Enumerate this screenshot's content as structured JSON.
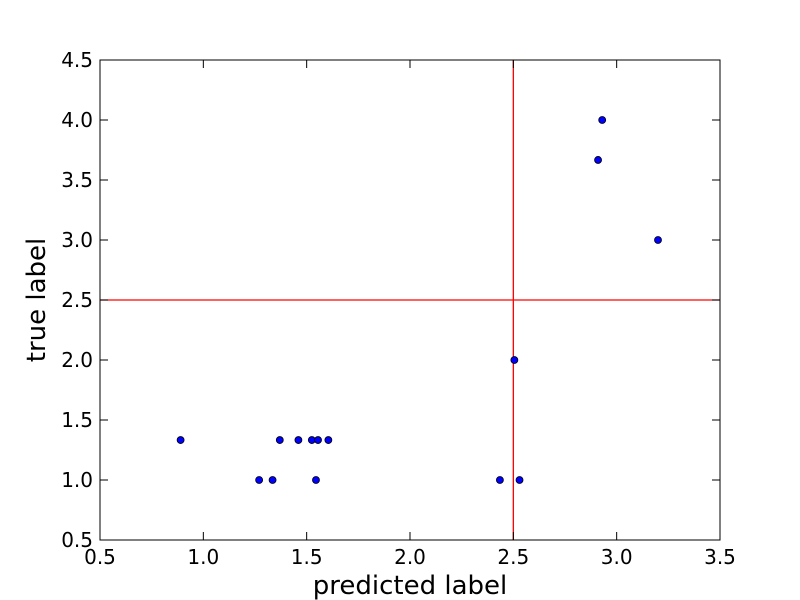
{
  "chart_data": {
    "type": "scatter",
    "title": "",
    "xlabel": "predicted label",
    "ylabel": "true label",
    "xlim": [
      0.5,
      3.5
    ],
    "ylim": [
      0.5,
      4.5
    ],
    "xticks": [
      "0.5",
      "1.0",
      "1.5",
      "2.0",
      "2.5",
      "3.0",
      "3.5"
    ],
    "yticks": [
      "0.5",
      "1.0",
      "1.5",
      "2.0",
      "2.5",
      "3.0",
      "3.5",
      "4.0",
      "4.5"
    ],
    "grid": false,
    "reference_lines": [
      {
        "orientation": "vertical",
        "value": 2.5,
        "color": "#ff0000"
      },
      {
        "orientation": "horizontal",
        "value": 2.5,
        "color": "#ff0000"
      }
    ],
    "marker_color": "#0000ff",
    "points": [
      {
        "x": 0.89,
        "y": 1.333
      },
      {
        "x": 1.27,
        "y": 1.0
      },
      {
        "x": 1.335,
        "y": 1.0
      },
      {
        "x": 1.37,
        "y": 1.333
      },
      {
        "x": 1.46,
        "y": 1.333
      },
      {
        "x": 1.525,
        "y": 1.333
      },
      {
        "x": 1.545,
        "y": 1.0
      },
      {
        "x": 1.555,
        "y": 1.333
      },
      {
        "x": 1.605,
        "y": 1.333
      },
      {
        "x": 2.435,
        "y": 1.0
      },
      {
        "x": 2.505,
        "y": 2.0
      },
      {
        "x": 2.53,
        "y": 1.0
      },
      {
        "x": 2.91,
        "y": 3.667
      },
      {
        "x": 2.93,
        "y": 4.0
      },
      {
        "x": 3.2,
        "y": 3.0
      }
    ]
  }
}
